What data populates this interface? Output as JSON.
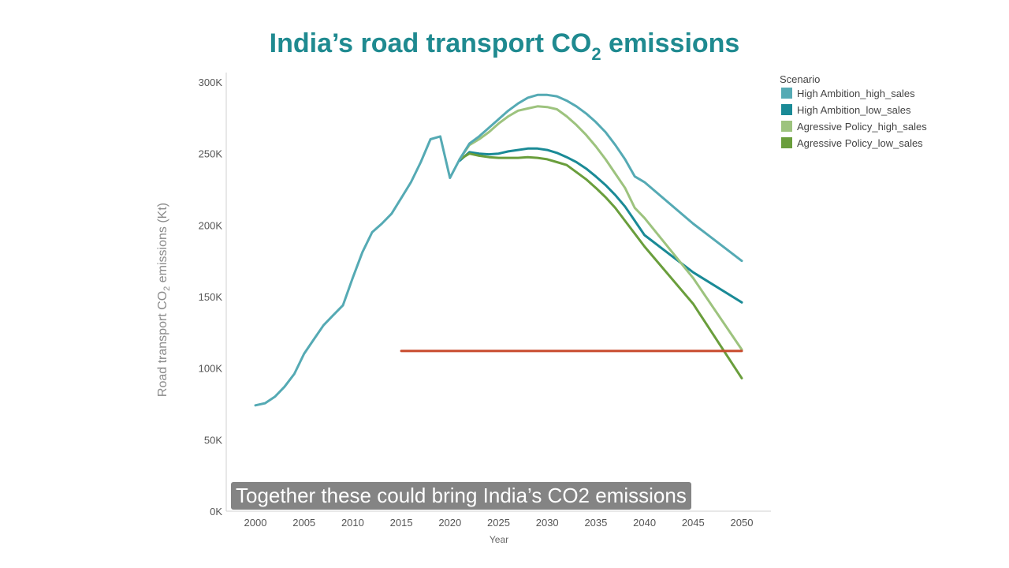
{
  "chart_data": {
    "type": "line",
    "title": "India’s road transport CO",
    "title_sub": "2",
    "title_suffix": " emissions",
    "ylabel": "Road transport CO",
    "ylabel_sub": "2",
    "ylabel_suffix": " emissions (Kt)",
    "xlabel": "Year",
    "xlim": [
      1998.5,
      2053
    ],
    "ylim": [
      0,
      300000
    ],
    "x_ticks": [
      2000,
      2005,
      2010,
      2015,
      2020,
      2025,
      2030,
      2035,
      2040,
      2045,
      2050
    ],
    "y_ticks": [
      0,
      50000,
      100000,
      150000,
      200000,
      250000,
      300000
    ],
    "y_tick_labels": [
      "0K",
      "50K",
      "100K",
      "150K",
      "200K",
      "250K",
      "300K"
    ],
    "grid": false,
    "legend_title": "Scenario",
    "legend_position": "top-right",
    "series": [
      {
        "name": "High Ambition_high_sales",
        "color": "#55aab4",
        "x": [
          2000,
          2001,
          2002,
          2003,
          2004,
          2005,
          2006,
          2007,
          2008,
          2009,
          2010,
          2011,
          2012,
          2013,
          2014,
          2015,
          2016,
          2017,
          2018,
          2019,
          2020,
          2021,
          2022,
          2023,
          2024,
          2025,
          2026,
          2027,
          2028,
          2029,
          2030,
          2031,
          2032,
          2033,
          2034,
          2035,
          2036,
          2037,
          2038,
          2039,
          2040,
          2045,
          2050
        ],
        "values": [
          74000,
          75500,
          80000,
          87000,
          96000,
          110000,
          120000,
          130000,
          137000,
          144000,
          163000,
          181000,
          195000,
          201000,
          208000,
          219000,
          230000,
          244000,
          260000,
          262000,
          233000,
          246000,
          257000,
          262000,
          268000,
          274000,
          280000,
          285000,
          289000,
          291000,
          291000,
          290000,
          287000,
          283000,
          278000,
          272000,
          265000,
          256000,
          246000,
          234000,
          230000,
          201000,
          175000
        ]
      },
      {
        "name": "High Ambition_low_sales",
        "color": "#1a8a96",
        "x": [
          2021,
          2022,
          2023,
          2024,
          2025,
          2026,
          2027,
          2028,
          2029,
          2030,
          2031,
          2032,
          2033,
          2034,
          2035,
          2036,
          2037,
          2038,
          2039,
          2040,
          2045,
          2050
        ],
        "values": [
          245000,
          251000,
          250000,
          249500,
          250000,
          251500,
          252500,
          253500,
          253500,
          252500,
          250500,
          247500,
          244000,
          239500,
          234000,
          228000,
          221000,
          213000,
          203000,
          193000,
          167000,
          146000
        ]
      },
      {
        "name": "Agressive Policy_high_sales",
        "color": "#9dc37e",
        "x": [
          2021,
          2022,
          2023,
          2024,
          2025,
          2026,
          2027,
          2028,
          2029,
          2030,
          2031,
          2032,
          2033,
          2034,
          2035,
          2036,
          2037,
          2038,
          2039,
          2040,
          2045,
          2050
        ],
        "values": [
          246000,
          256000,
          260000,
          265000,
          271000,
          276000,
          280000,
          281500,
          283000,
          282500,
          281000,
          276000,
          270000,
          263000,
          255000,
          246000,
          236000,
          226000,
          212000,
          205000,
          163000,
          113000
        ]
      },
      {
        "name": "Agressive Policy_low_sales",
        "color": "#6a9e3c",
        "x": [
          2021,
          2022,
          2023,
          2024,
          2025,
          2026,
          2027,
          2028,
          2029,
          2030,
          2031,
          2032,
          2033,
          2034,
          2035,
          2036,
          2037,
          2038,
          2039,
          2040,
          2045,
          2050
        ],
        "values": [
          246000,
          250000,
          248500,
          247500,
          247000,
          247000,
          247000,
          247500,
          247000,
          246000,
          244000,
          242000,
          237000,
          232000,
          226000,
          219500,
          212000,
          203000,
          194000,
          185000,
          145000,
          93000
        ]
      },
      {
        "color": "#c84a2c",
        "x": [
          2015,
          2050
        ],
        "values": [
          112000,
          112000
        ]
      }
    ]
  },
  "caption": "Together these could bring India’s CO2 emissions"
}
